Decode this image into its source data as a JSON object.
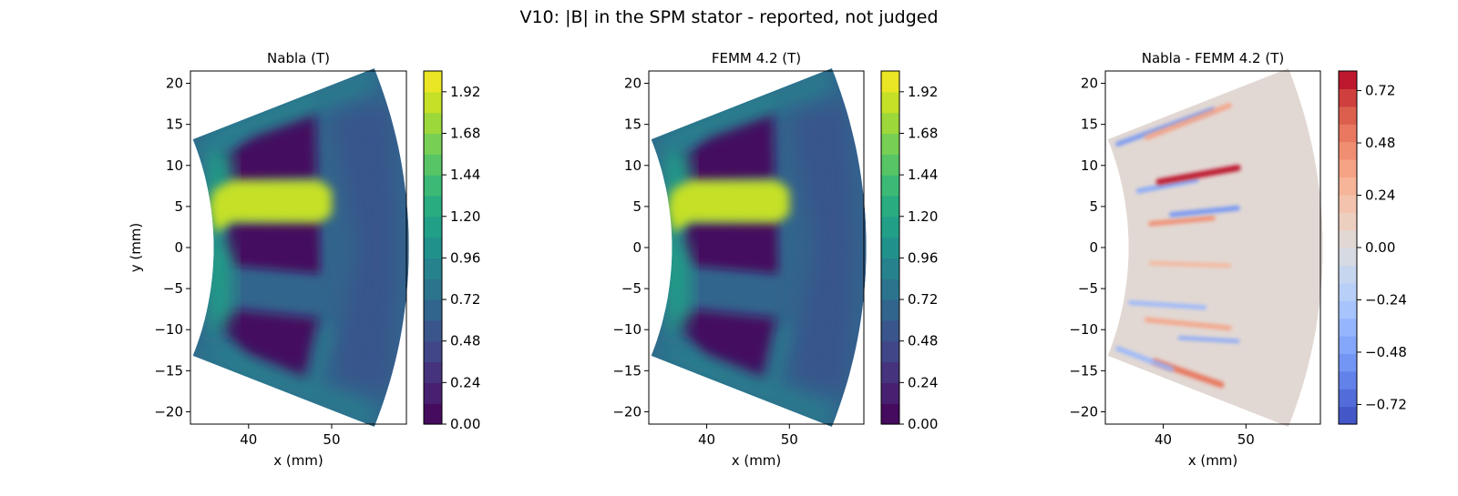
{
  "figure_title": "V10: |B| in the SPM stator - reported, not judged",
  "colors": {
    "viridis": [
      "#440154",
      "#482475",
      "#414487",
      "#355f8d",
      "#2a788e",
      "#21918c",
      "#22a884",
      "#44bf70",
      "#7ad151",
      "#bddf26",
      "#fde725"
    ],
    "coolwarm": [
      "#3b4cc0",
      "#5977e3",
      "#7b9ff9",
      "#9ebeff",
      "#c0d4f5",
      "#dddcdc",
      "#f2cbb7",
      "#f7ac8e",
      "#ee8468",
      "#d65244",
      "#b40426"
    ],
    "axis": "#000000"
  },
  "chart_data": [
    {
      "type": "heatmap",
      "title": "Nabla (T)",
      "xlabel": "x (mm)",
      "ylabel": "y (mm)",
      "xlim": [
        33,
        59
      ],
      "ylim": [
        -21.5,
        21.5
      ],
      "xticks": [
        40,
        50
      ],
      "yticks": [
        20,
        15,
        10,
        5,
        0,
        -5,
        -10,
        -15,
        -20
      ],
      "colormap": "viridis",
      "colorbar": {
        "min": 0.0,
        "max": 2.04,
        "ticks": [
          "0.00",
          "0.24",
          "0.48",
          "0.72",
          "0.96",
          "1.20",
          "1.44",
          "1.68",
          "1.92"
        ],
        "levels": 17
      },
      "fields": [
        {
          "region": "stator background",
          "value": 0.6
        },
        {
          "region": "outer back-iron",
          "value": 0.55
        },
        {
          "region": "upper slot",
          "value": 0.02
        },
        {
          "region": "lower slot",
          "value": 0.02
        },
        {
          "region": "middle slot",
          "value": 0.02
        },
        {
          "region": "tooth tip region",
          "value": 1.1
        },
        {
          "region": "upper slot edge",
          "value": 0.95
        },
        {
          "region": "lower slot edge",
          "value": 0.95
        },
        {
          "region": "upper boundary",
          "value": 0.9
        },
        {
          "region": "lower boundary",
          "value": 0.9
        },
        {
          "region": "tooth",
          "value": 1.85
        }
      ]
    },
    {
      "type": "heatmap",
      "title": "FEMM 4.2 (T)",
      "xlabel": "x (mm)",
      "ylabel": "",
      "xlim": [
        33,
        59
      ],
      "ylim": [
        -21.5,
        21.5
      ],
      "xticks": [
        40,
        50
      ],
      "yticks": [
        20,
        15,
        10,
        5,
        0,
        -5,
        -10,
        -15,
        -20
      ],
      "colormap": "viridis",
      "colorbar": {
        "min": 0.0,
        "max": 2.04,
        "ticks": [
          "0.00",
          "0.24",
          "0.48",
          "0.72",
          "0.96",
          "1.20",
          "1.44",
          "1.68",
          "1.92"
        ],
        "levels": 17
      },
      "fields": [
        {
          "region": "stator background",
          "value": 0.6
        },
        {
          "region": "outer back-iron",
          "value": 0.55
        },
        {
          "region": "upper slot",
          "value": 0.02
        },
        {
          "region": "lower slot",
          "value": 0.02
        },
        {
          "region": "middle slot",
          "value": 0.02
        },
        {
          "region": "tooth tip region",
          "value": 1.1
        },
        {
          "region": "upper slot edge",
          "value": 0.95
        },
        {
          "region": "lower slot edge",
          "value": 0.95
        },
        {
          "region": "upper boundary",
          "value": 0.9
        },
        {
          "region": "lower boundary",
          "value": 0.9
        },
        {
          "region": "tooth",
          "value": 1.8
        }
      ]
    },
    {
      "type": "heatmap",
      "title": "Nabla - FEMM 4.2 (T)",
      "xlabel": "x (mm)",
      "ylabel": "",
      "xlim": [
        33,
        59
      ],
      "ylim": [
        -21.5,
        21.5
      ],
      "xticks": [
        40,
        50
      ],
      "yticks": [
        20,
        15,
        10,
        5,
        0,
        -5,
        -10,
        -15,
        -20
      ],
      "colormap": "coolwarm",
      "colorbar": {
        "min": -0.81,
        "max": 0.81,
        "ticks": [
          "−0.72",
          "−0.48",
          "−0.24",
          "0.00",
          "0.24",
          "0.48",
          "0.72"
        ],
        "levels": 20
      },
      "fields": [
        {
          "region": "stator background",
          "value": 0.0
        },
        {
          "region": "diff band 1 lower",
          "value": -0.5
        },
        {
          "region": "diff band 1 upper",
          "value": 0.35
        },
        {
          "region": "diff band 2 lower",
          "value": -0.45
        },
        {
          "region": "diff band 2 upper",
          "value": 0.75
        },
        {
          "region": "diff band 3 lower",
          "value": 0.45
        },
        {
          "region": "diff band 3 upper",
          "value": -0.55
        },
        {
          "region": "diff band 4 lower",
          "value": -0.4
        },
        {
          "region": "diff band 4 upper",
          "value": 0.3
        },
        {
          "region": "diff band 5 lower",
          "value": 0.4
        },
        {
          "region": "diff band 5 upper",
          "value": -0.45
        },
        {
          "region": "diff band 6 lower",
          "value": 0.55
        },
        {
          "region": "diff band 6 upper",
          "value": -0.4
        }
      ]
    }
  ]
}
